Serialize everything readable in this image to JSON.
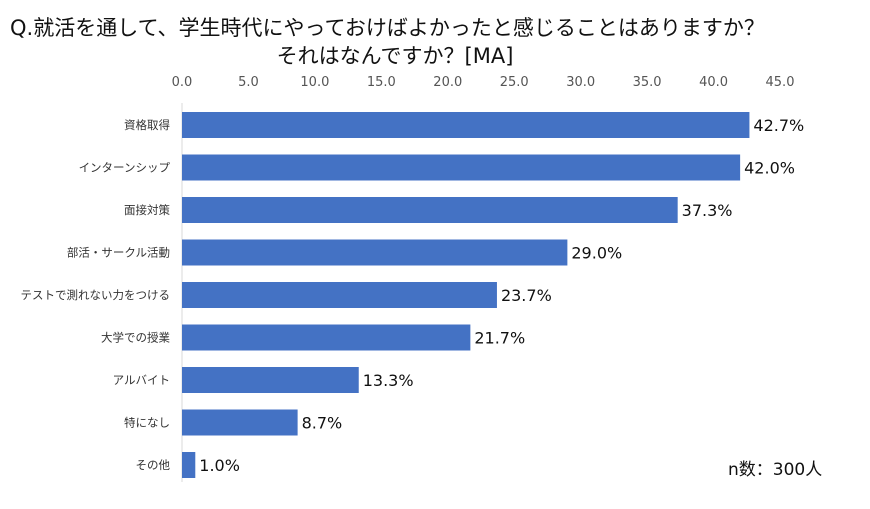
{
  "chart_data": {
    "type": "bar",
    "orientation": "horizontal",
    "title_lines": [
      "Q.就活を通して、学生時代にやっておけばよかったと感じることはありますか？",
      "それはなんですか？[MA]"
    ],
    "categories": [
      "資格取得",
      "インターンシップ",
      "面接対策",
      "部活・サークル活動",
      "テストで測れない力をつける",
      "大学での授業",
      "アルバイト",
      "特になし",
      "その他"
    ],
    "values": [
      42.7,
      42.0,
      37.3,
      29.0,
      23.7,
      21.7,
      13.3,
      8.7,
      1.0
    ],
    "value_labels": [
      "42.7%",
      "42.0%",
      "37.3%",
      "29.0%",
      "23.7%",
      "21.7%",
      "13.3%",
      "8.7%",
      "1.0%"
    ],
    "xlim": [
      0,
      45
    ],
    "xticks": [
      "0.0",
      "5.0",
      "10.0",
      "15.0",
      "20.0",
      "25.0",
      "30.0",
      "35.0",
      "40.0",
      "45.0"
    ],
    "axis_position": "top",
    "grid": false,
    "bar_color": "#4472C4",
    "annotation": "n数：300人"
  }
}
